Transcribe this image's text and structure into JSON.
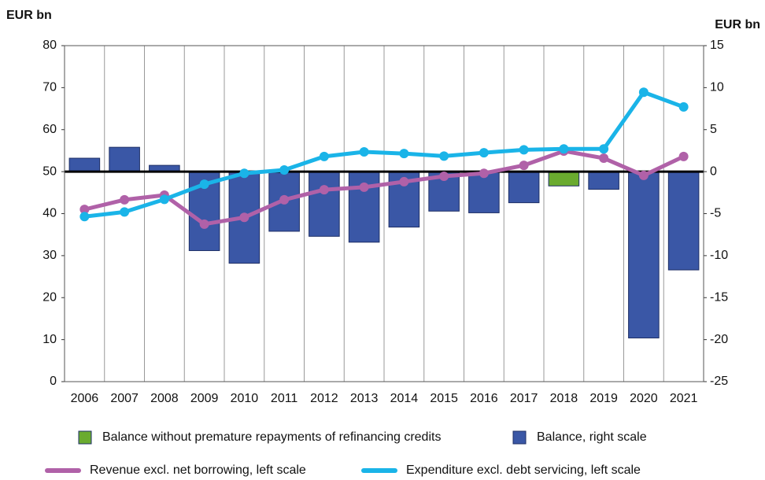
{
  "chart_data": {
    "type": "combo",
    "y_label": "EUR bn",
    "y2_label": "EUR bn",
    "categories": [
      "2006",
      "2007",
      "2008",
      "2009",
      "2010",
      "2011",
      "2012",
      "2013",
      "2014",
      "2015",
      "2016",
      "2017",
      "2018",
      "2019",
      "2020",
      "2021"
    ],
    "ylim": [
      0,
      80
    ],
    "yticks": [
      0,
      10,
      20,
      30,
      40,
      50,
      60,
      70,
      80
    ],
    "y2lim": [
      -25,
      15
    ],
    "y2ticks": [
      -25,
      -20,
      -15,
      -10,
      -5,
      0,
      5,
      10,
      15
    ],
    "grid": true,
    "series": [
      {
        "name": "Balance without premature repayments of refinancing credits",
        "type": "bar",
        "axis": "y2",
        "color": "#6aab2f",
        "values": [
          null,
          null,
          null,
          null,
          null,
          null,
          null,
          null,
          null,
          null,
          null,
          null,
          -1.7,
          null,
          null,
          null
        ]
      },
      {
        "name": "Balance, right scale",
        "type": "bar",
        "axis": "y2",
        "color": "#3a57a6",
        "values": [
          1.6,
          2.9,
          0.75,
          -9.4,
          -10.9,
          -7.1,
          -7.7,
          -8.4,
          -6.6,
          -4.7,
          -4.9,
          -3.7,
          null,
          -2.1,
          -19.8,
          -11.7
        ]
      },
      {
        "name": "Revenue excl. net borrowing, left scale",
        "type": "line",
        "axis": "y",
        "color": "#b061a8",
        "values": [
          41.0,
          43.3,
          44.4,
          37.5,
          39.1,
          43.3,
          45.7,
          46.3,
          47.6,
          48.9,
          49.6,
          51.5,
          54.9,
          53.2,
          49.1,
          53.6
        ]
      },
      {
        "name": "Expenditure excl. debt servicing, left scale",
        "type": "line",
        "axis": "y",
        "color": "#1ab4e8",
        "values": [
          39.3,
          40.4,
          43.4,
          47.0,
          49.6,
          50.4,
          53.6,
          54.7,
          54.3,
          53.7,
          54.5,
          55.2,
          55.4,
          55.4,
          68.9,
          65.4
        ]
      }
    ]
  }
}
